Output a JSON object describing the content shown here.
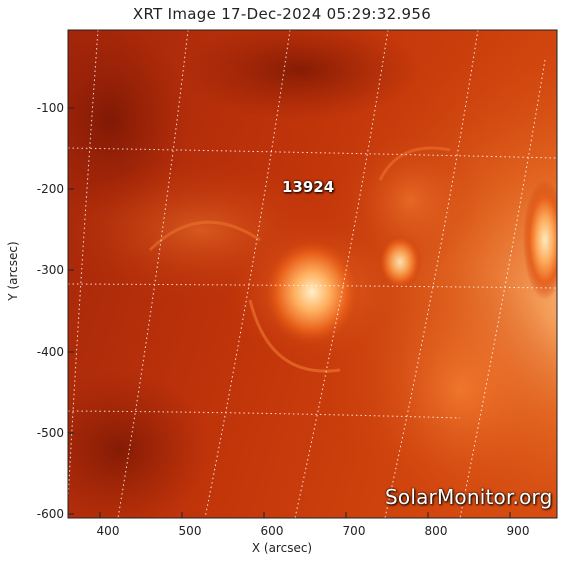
{
  "title": "XRT Image 17-Dec-2024 05:29:32.956",
  "axes": {
    "xlabel": "X (arcsec)",
    "ylabel": "Y (arcsec)",
    "x_ticks": [
      "400",
      "500",
      "600",
      "700",
      "800",
      "900"
    ],
    "y_ticks": [
      "-100",
      "-200",
      "-300",
      "-400",
      "-500",
      "-600"
    ]
  },
  "region_label": "13924",
  "watermark": "SolarMonitor.org",
  "colors": {
    "background": "#ffffff",
    "sun_dark": "#8a1a04",
    "sun_mid": "#c83a08",
    "sun_bright": "#ffb070",
    "grid": "#ffffff"
  }
}
